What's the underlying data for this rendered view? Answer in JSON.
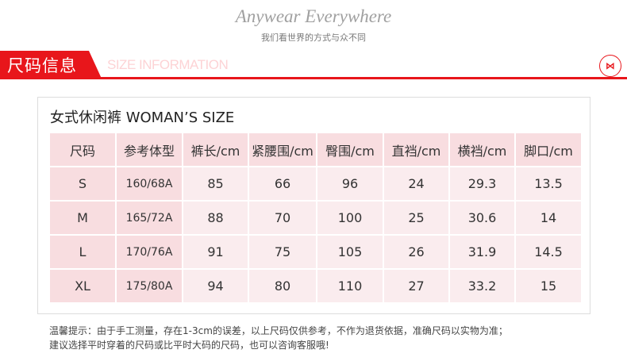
{
  "header": {
    "slogan": "Anywear Everywhere",
    "subtitle": "我们看世界的方式与众不同"
  },
  "section": {
    "title_cn": "尺码信息",
    "title_en": "SIZE INFORMATION",
    "logo": "M"
  },
  "table": {
    "title": "女式休闲裤 WOMAN’S SIZE",
    "columns": [
      "尺码",
      "参考体型",
      "裤长/cm",
      "紧腰围/cm",
      "臀围/cm",
      "直裆/cm",
      "横裆/cm",
      "脚口/cm"
    ],
    "rows": [
      [
        "S",
        "160/68A",
        "85",
        "66",
        "96",
        "24",
        "29.3",
        "13.5"
      ],
      [
        "M",
        "165/72A",
        "88",
        "70",
        "100",
        "25",
        "30.6",
        "14"
      ],
      [
        "L",
        "170/76A",
        "91",
        "75",
        "105",
        "26",
        "31.9",
        "14.5"
      ],
      [
        "XL",
        "175/80A",
        "94",
        "80",
        "110",
        "27",
        "33.2",
        "15"
      ]
    ]
  },
  "notes": [
    "温馨提示：由于手工测量，存在1-3cm的误差，以上尺码仅供参考，不作为退货依据，准确尺码以实物为准；",
    "建议选择平时穿着的尺码或比平时大码的尺码，也可以咨询客服哦!"
  ]
}
